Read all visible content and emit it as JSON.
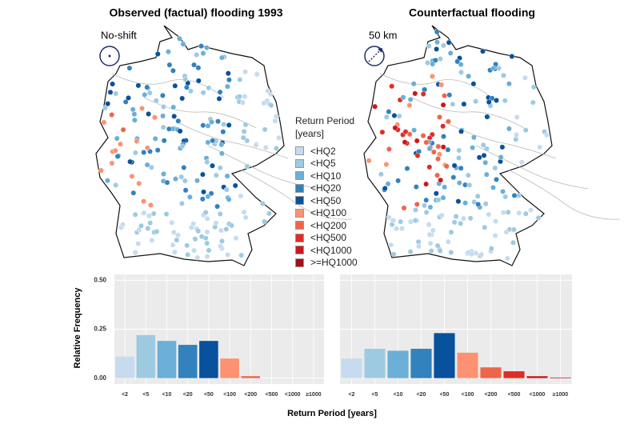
{
  "maps": [
    {
      "title": "Observed (factual) flooding 1993",
      "label": "No-shift"
    },
    {
      "title": "Counterfactual flooding",
      "label": "50 km"
    }
  ],
  "legend": {
    "title": "Return Period [years]",
    "items": [
      {
        "label": "<HQ2",
        "color": "#c6dbef"
      },
      {
        "label": "<HQ5",
        "color": "#9ecae1"
      },
      {
        "label": "<HQ10",
        "color": "#6baed6"
      },
      {
        "label": "<HQ20",
        "color": "#3182bd"
      },
      {
        "label": "<HQ50",
        "color": "#08519c"
      },
      {
        "label": "<HQ100",
        "color": "#fc9272"
      },
      {
        "label": "<HQ200",
        "color": "#ef6548"
      },
      {
        "label": "<HQ500",
        "color": "#de2d26"
      },
      {
        "label": "<HQ1000",
        "color": "#cb181d"
      },
      {
        "label": ">=HQ1000",
        "color": "#a50f15"
      }
    ]
  },
  "shared": {
    "xlabel": "Return Period [years]",
    "ylabel": "Relative Frequency"
  },
  "chart_data": [
    {
      "type": "bar",
      "categories": [
        "<2",
        "<5",
        "<10",
        "<20",
        "<50",
        "<100",
        "<200",
        "<500",
        "<1000",
        "≥1000"
      ],
      "values": [
        0.11,
        0.22,
        0.19,
        0.17,
        0.19,
        0.1,
        0.01,
        0,
        0,
        0
      ],
      "colors": [
        "#c6dbef",
        "#9ecae1",
        "#6baed6",
        "#3182bd",
        "#08519c",
        "#fc9272",
        "#ef6548",
        "#de2d26",
        "#cb181d",
        "#a50f15"
      ],
      "ylim": [
        -0.03,
        0.53
      ],
      "yticks": [
        {
          "value": 0,
          "label": "0.00"
        },
        {
          "value": 0.25,
          "label": "0.25"
        },
        {
          "value": 0.5,
          "label": "0.50"
        }
      ],
      "grid": true
    },
    {
      "type": "bar",
      "categories": [
        "<2",
        "<5",
        "<10",
        "<20",
        "<50",
        "<100",
        "<200",
        "<500",
        "<1000",
        "≥1000"
      ],
      "values": [
        0.1,
        0.15,
        0.14,
        0.15,
        0.23,
        0.13,
        0.055,
        0.035,
        0.01,
        0.003
      ],
      "colors": [
        "#c6dbef",
        "#9ecae1",
        "#6baed6",
        "#3182bd",
        "#08519c",
        "#fc9272",
        "#ef6548",
        "#de2d26",
        "#cb181d",
        "#a50f15"
      ],
      "ylim": [
        -0.03,
        0.53
      ],
      "yticks": [
        {
          "value": 0,
          "label": "0.00"
        },
        {
          "value": 0.25,
          "label": "0.25"
        },
        {
          "value": 0.5,
          "label": "0.50"
        }
      ],
      "grid": true
    }
  ]
}
